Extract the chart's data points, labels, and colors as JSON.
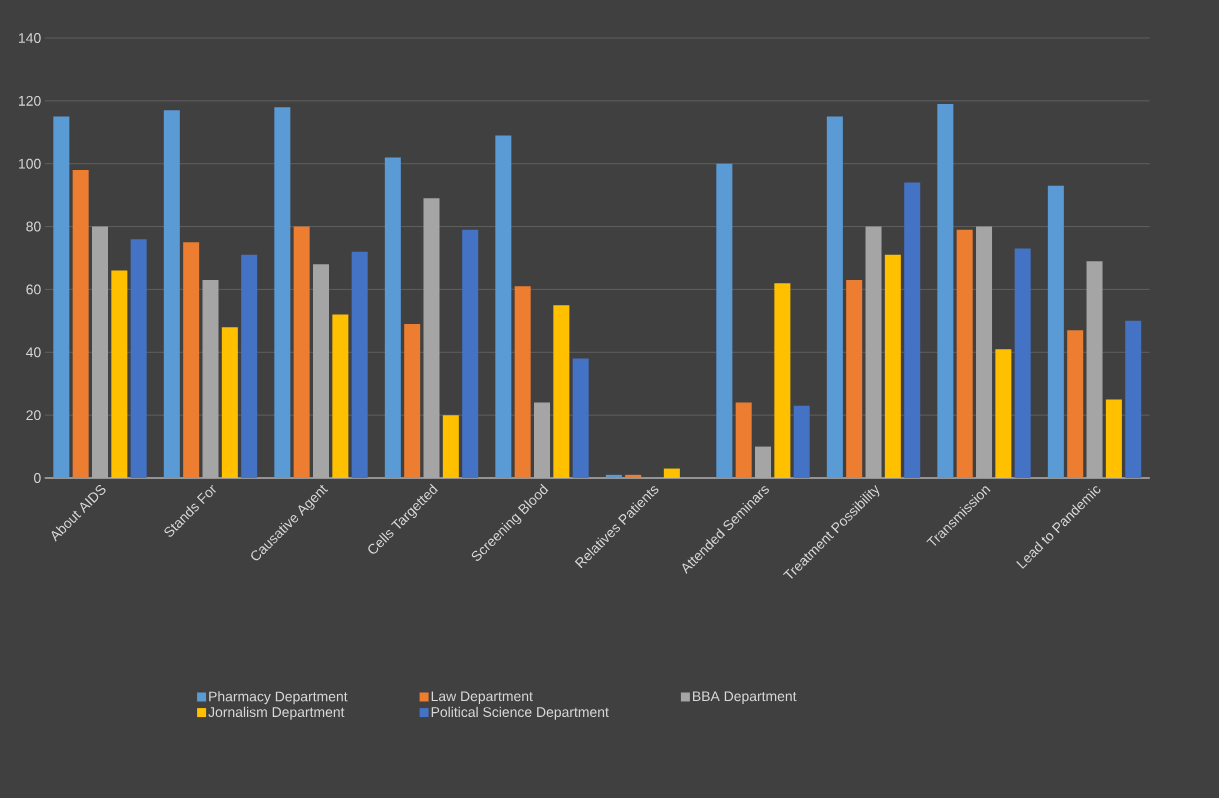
{
  "chart_data": {
    "type": "bar",
    "categories": [
      "About AIDS",
      "Stands For",
      "Causative Agent",
      "Cells Targetted",
      "Screening  Blood",
      "Relatives Patients",
      "Attended Seminars",
      "Treatment Possibility",
      "Transmission",
      "Lead to Pandemic"
    ],
    "series": [
      {
        "name": "Pharmacy Department",
        "color": "#5b9bd5",
        "values": [
          115,
          117,
          118,
          102,
          109,
          1,
          100,
          115,
          119,
          93
        ]
      },
      {
        "name": "Law Department",
        "color": "#ed7d31",
        "values": [
          98,
          75,
          80,
          49,
          61,
          1,
          24,
          63,
          79,
          47
        ]
      },
      {
        "name": "BBA Department",
        "color": "#a5a5a5",
        "values": [
          80,
          63,
          68,
          89,
          24,
          0,
          10,
          80,
          80,
          69
        ]
      },
      {
        "name": "Jornalism Department",
        "color": "#ffc000",
        "values": [
          66,
          48,
          52,
          20,
          55,
          3,
          62,
          71,
          41,
          25
        ]
      },
      {
        "name": "Political Science Department",
        "color": "#4472c4",
        "values": [
          76,
          71,
          72,
          79,
          38,
          0,
          23,
          94,
          73,
          50
        ]
      }
    ],
    "ylim": [
      0,
      140
    ],
    "yticks": [
      0,
      20,
      40,
      60,
      80,
      100,
      120,
      140
    ],
    "grid": "y",
    "legend": "bottom"
  }
}
